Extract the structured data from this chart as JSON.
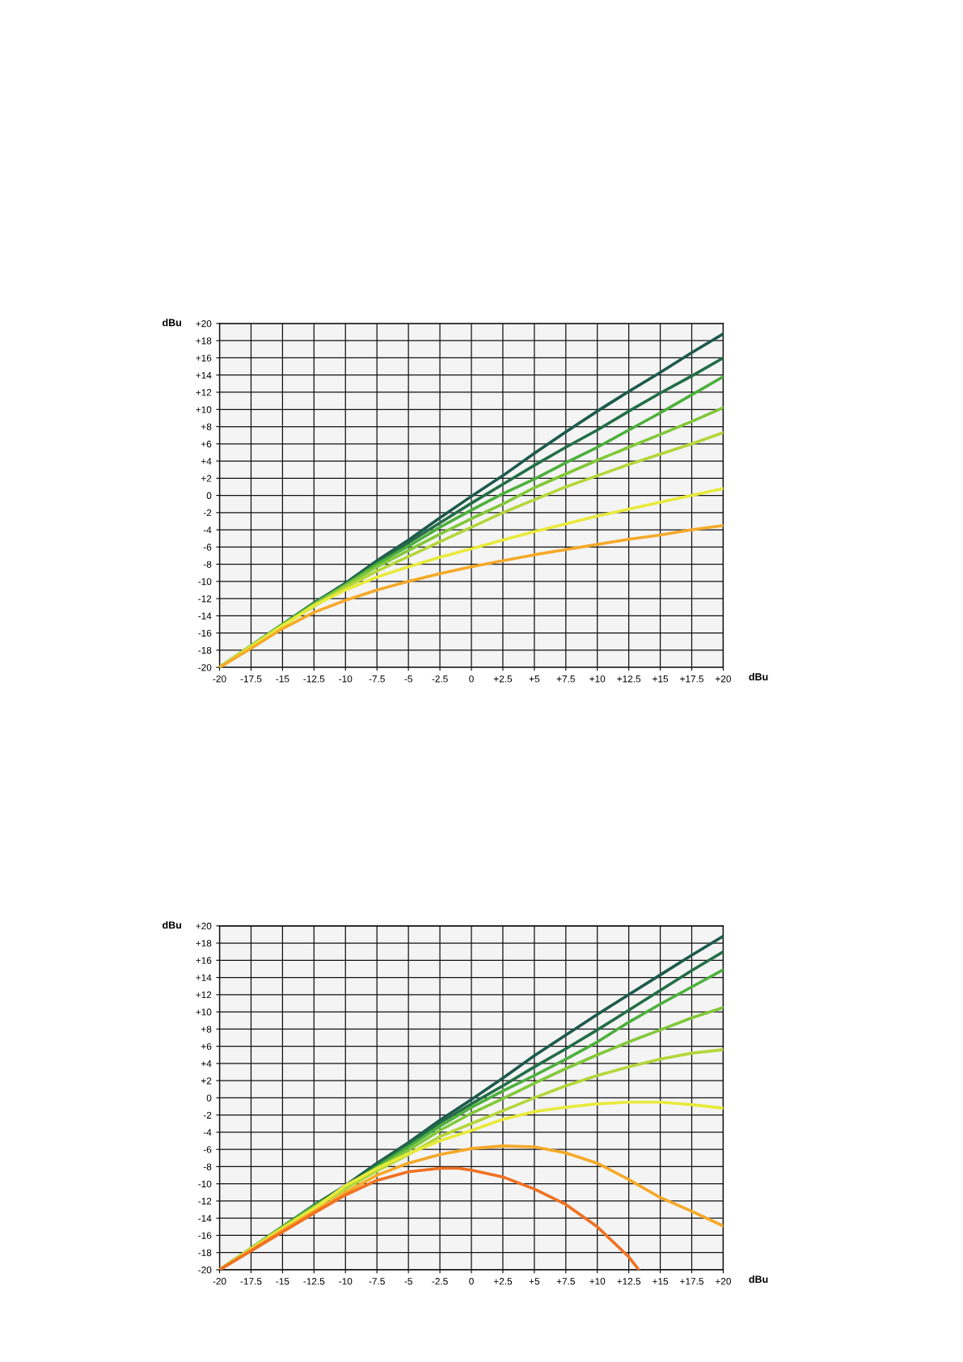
{
  "chart_data": [
    {
      "type": "line",
      "xlabel": "dBu",
      "ylabel": "dBu",
      "grid": true,
      "legend": false,
      "line_style": "solid",
      "xlim": [
        -20,
        20
      ],
      "ylim": [
        -20,
        20
      ],
      "xticks": [
        -20,
        -17.5,
        -15,
        -12.5,
        -10,
        -7.5,
        -5,
        -2.5,
        0,
        {
          "value": 2.5,
          "label": "+2.5"
        },
        {
          "value": 5,
          "label": "+5"
        },
        {
          "value": 7.5,
          "label": "+7.5"
        },
        {
          "value": 10,
          "label": "+10"
        },
        {
          "value": 12.5,
          "label": "+12.5"
        },
        {
          "value": 15,
          "label": "+15"
        },
        {
          "value": 17.5,
          "label": "+17.5"
        },
        {
          "value": 20,
          "label": "+20"
        }
      ],
      "yticks": [
        -20,
        -18,
        -16,
        -14,
        -12,
        -10,
        -8,
        -6,
        -4,
        -2,
        0,
        {
          "value": 2,
          "label": "+2"
        },
        {
          "value": 4,
          "label": "+4"
        },
        {
          "value": 6,
          "label": "+6"
        },
        {
          "value": 8,
          "label": "+8"
        },
        {
          "value": 10,
          "label": "+10"
        },
        {
          "value": 12,
          "label": "+12"
        },
        {
          "value": 14,
          "label": "+14"
        },
        {
          "value": 16,
          "label": "+16"
        },
        {
          "value": 18,
          "label": "+18"
        },
        {
          "value": 20,
          "label": "+20"
        }
      ],
      "x": [
        -20,
        -17.5,
        -15,
        -12.5,
        -10,
        -7.5,
        -5,
        -2.5,
        0,
        2.5,
        5,
        7.5,
        10,
        12.5,
        15,
        17.5,
        20
      ],
      "series": [
        {
          "color": "#1d5a4c",
          "values": [
            -20,
            -17.5,
            -15,
            -12.5,
            -10.2,
            -7.6,
            -5.2,
            -2.6,
            -0.1,
            2.3,
            4.9,
            7.4,
            9.8,
            12.1,
            14.3,
            16.6,
            18.8
          ]
        },
        {
          "color": "#236e47",
          "values": [
            -20,
            -17.5,
            -15,
            -12.5,
            -10.3,
            -7.8,
            -5.5,
            -3.2,
            -0.9,
            1.3,
            3.5,
            5.6,
            7.6,
            9.8,
            11.9,
            13.9,
            16
          ]
        },
        {
          "color": "#4cb03c",
          "values": [
            -20,
            -17.5,
            -15,
            -12.6,
            -10.4,
            -8,
            -5.9,
            -3.7,
            -1.7,
            0.2,
            1.9,
            3.8,
            5.6,
            7.6,
            9.6,
            11.7,
            13.8
          ]
        },
        {
          "color": "#82c83a",
          "values": [
            -20,
            -17.5,
            -15.1,
            -12.7,
            -10.5,
            -8.3,
            -6.4,
            -4.5,
            -2.7,
            -1,
            0.9,
            2.5,
            4.1,
            5.6,
            7.1,
            8.6,
            10.2
          ]
        },
        {
          "color": "#b4d63a",
          "values": [
            -20,
            -17.5,
            -15.1,
            -12.9,
            -10.7,
            -8.8,
            -7.1,
            -5.4,
            -3.7,
            -2,
            -0.5,
            1,
            2.3,
            3.6,
            4.8,
            6,
            7.3
          ]
        },
        {
          "color": "#e8ea3a",
          "values": [
            -20,
            -17.6,
            -15.2,
            -12.8,
            -11,
            -9.5,
            -8.3,
            -7.2,
            -6.2,
            -5.2,
            -4.2,
            -3.3,
            -2.4,
            -1.6,
            -0.8,
            0,
            0.8
          ]
        },
        {
          "color": "#f5a928",
          "values": [
            -20,
            -17.8,
            -15.5,
            -13.6,
            -12.2,
            -11,
            -10,
            -9.1,
            -8.3,
            -7.6,
            -6.9,
            -6.3,
            -5.7,
            -5.1,
            -4.6,
            -4,
            -3.5
          ]
        }
      ]
    },
    {
      "type": "line",
      "xlabel": "dBu",
      "ylabel": "dBu",
      "grid": true,
      "legend": false,
      "line_style": "solid",
      "xlim": [
        -20,
        20
      ],
      "ylim": [
        -20,
        20
      ],
      "xticks": [
        -20,
        -17.5,
        -15,
        -12.5,
        -10,
        -7.5,
        -5,
        -2.5,
        0,
        {
          "value": 2.5,
          "label": "+2.5"
        },
        {
          "value": 5,
          "label": "+5"
        },
        {
          "value": 7.5,
          "label": "+7.5"
        },
        {
          "value": 10,
          "label": "+10"
        },
        {
          "value": 12.5,
          "label": "+12.5"
        },
        {
          "value": 15,
          "label": "+15"
        },
        {
          "value": 17.5,
          "label": "+17.5"
        },
        {
          "value": 20,
          "label": "+20"
        }
      ],
      "yticks": [
        -20,
        -18,
        -16,
        -14,
        -12,
        -10,
        -8,
        -6,
        -4,
        -2,
        0,
        {
          "value": 2,
          "label": "+2"
        },
        {
          "value": 4,
          "label": "+4"
        },
        {
          "value": 6,
          "label": "+6"
        },
        {
          "value": 8,
          "label": "+8"
        },
        {
          "value": 10,
          "label": "+10"
        },
        {
          "value": 12,
          "label": "+12"
        },
        {
          "value": 14,
          "label": "+14"
        },
        {
          "value": 16,
          "label": "+16"
        },
        {
          "value": 18,
          "label": "+18"
        },
        {
          "value": 20,
          "label": "+20"
        }
      ],
      "x": [
        -20,
        -17.5,
        -15,
        -12.5,
        -10,
        -7.5,
        -5,
        -2.5,
        0,
        2.5,
        5,
        7.5,
        10,
        12.5,
        15,
        17.5,
        20
      ],
      "series": [
        {
          "color": "#1d5a4c",
          "values": [
            -20,
            -17.5,
            -15,
            -12.5,
            -10.2,
            -7.6,
            -5.2,
            -2.6,
            -0.2,
            2.3,
            4.9,
            7.3,
            9.7,
            12,
            14.3,
            16.6,
            18.8
          ]
        },
        {
          "color": "#236e47",
          "values": [
            -20,
            -17.5,
            -15,
            -12.5,
            -10.3,
            -7.8,
            -5.4,
            -2.9,
            -0.7,
            1.4,
            3.6,
            5.7,
            7.9,
            10.2,
            12.5,
            14.8,
            17
          ]
        },
        {
          "color": "#4cb03c",
          "values": [
            -20,
            -17.5,
            -15,
            -12.6,
            -10.4,
            -8,
            -5.7,
            -3.3,
            -1.1,
            0.8,
            2.6,
            4.5,
            6.5,
            8.8,
            10.9,
            12.9,
            14.9
          ]
        },
        {
          "color": "#82c83a",
          "values": [
            -20,
            -17.5,
            -15.1,
            -12.7,
            -10.5,
            -8.2,
            -6.1,
            -3.8,
            -1.8,
            -0.1,
            1.7,
            3.4,
            5,
            6.5,
            7.9,
            9.3,
            10.5
          ]
        },
        {
          "color": "#b4d63a",
          "values": [
            -20,
            -17.5,
            -15.1,
            -12.8,
            -10.6,
            -8.5,
            -6.6,
            -4.5,
            -3,
            -1.5,
            0,
            1.4,
            2.6,
            3.6,
            4.5,
            5.2,
            5.6
          ]
        },
        {
          "color": "#e8ea3a",
          "values": [
            -20,
            -17.6,
            -15.2,
            -12.9,
            -10.2,
            -8.2,
            -6.5,
            -5,
            -3.8,
            -2.5,
            -1.6,
            -1.1,
            -0.7,
            -0.5,
            -0.5,
            -0.8,
            -1.2
          ]
        },
        {
          "color": "#f5a928",
          "values": [
            -20,
            -17.7,
            -15.4,
            -13.2,
            -11,
            -9,
            -7.6,
            -6.6,
            -5.9,
            -5.6,
            -5.7,
            -6.4,
            -7.6,
            -9.5,
            -11.6,
            -13.2,
            -14.9
          ]
        },
        {
          "color": "#f07020",
          "x": [
            -20,
            -17.5,
            -15,
            -12.5,
            -10,
            -7.5,
            -5,
            -2.5,
            -1,
            0,
            2.5,
            5,
            7.5,
            10,
            12.5,
            13.3
          ],
          "values": [
            -20,
            -17.8,
            -15.6,
            -13.4,
            -11.3,
            -9.6,
            -8.6,
            -8.2,
            -8.2,
            -8.4,
            -9.2,
            -10.6,
            -12.4,
            -15,
            -18.5,
            -20
          ]
        }
      ]
    }
  ]
}
